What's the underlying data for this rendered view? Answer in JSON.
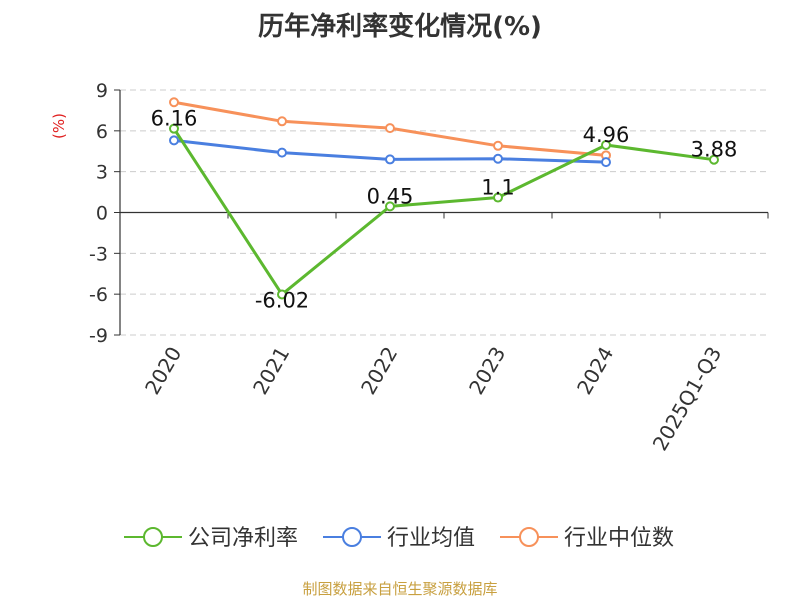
{
  "title": "历年净利率变化情况(%)",
  "footer": "制图数据来自恒生聚源数据库",
  "colors": {
    "company": "#5cb82f",
    "industry_avg": "#4a7fe0",
    "industry_median": "#f7915a",
    "axis": "#333333",
    "grid": "#cccccc",
    "unit": "#e02020"
  },
  "chart_data": {
    "type": "line",
    "ylabel": "(%)",
    "ylim": [
      -9,
      9
    ],
    "yticks": [
      9,
      6,
      3,
      0,
      -3,
      -6,
      -9
    ],
    "grid": "horizontal-dashed",
    "legend_position": "bottom",
    "categories": [
      "2020",
      "2021",
      "2022",
      "2023",
      "2024",
      "2025Q1-Q3"
    ],
    "series": [
      {
        "name": "公司净利率",
        "color": "#5cb82f",
        "values": [
          6.16,
          -6.02,
          0.45,
          1.1,
          4.96,
          3.88
        ],
        "labels": [
          "6.16",
          "-6.02",
          "0.45",
          "1.1",
          "4.96",
          "3.88"
        ]
      },
      {
        "name": "行业均值",
        "color": "#4a7fe0",
        "values": [
          5.3,
          4.4,
          3.9,
          3.95,
          3.7,
          null
        ],
        "labels": null
      },
      {
        "name": "行业中位数",
        "color": "#f7915a",
        "values": [
          8.1,
          6.7,
          6.2,
          4.9,
          4.2,
          null
        ],
        "labels": null
      }
    ]
  }
}
